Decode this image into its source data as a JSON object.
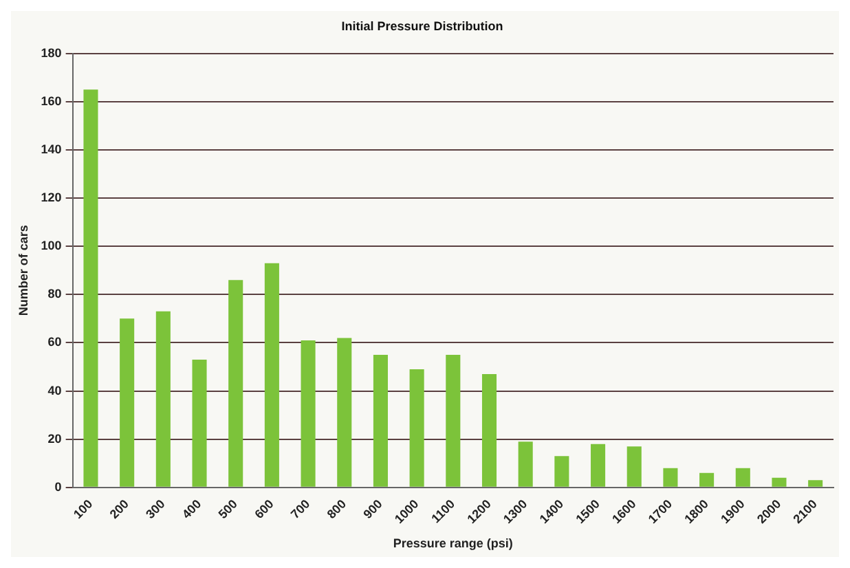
{
  "chart_data": {
    "type": "bar",
    "title": "Initial Pressure Distribution",
    "xlabel": "Pressure range (psi)",
    "ylabel": "Number of cars",
    "categories": [
      "100",
      "200",
      "300",
      "400",
      "500",
      "600",
      "700",
      "800",
      "900",
      "1000",
      "1100",
      "1200",
      "1300",
      "1400",
      "1500",
      "1600",
      "1700",
      "1800",
      "1900",
      "2000",
      "2100"
    ],
    "values": [
      165,
      70,
      73,
      53,
      86,
      93,
      61,
      62,
      55,
      49,
      55,
      47,
      19,
      13,
      18,
      17,
      8,
      6,
      8,
      4,
      3
    ],
    "color": "#7cc33a",
    "ylim": [
      0,
      180
    ],
    "yticks": [
      0,
      20,
      40,
      60,
      80,
      100,
      120,
      140,
      160,
      180
    ],
    "grid": "y",
    "legend": false
  }
}
